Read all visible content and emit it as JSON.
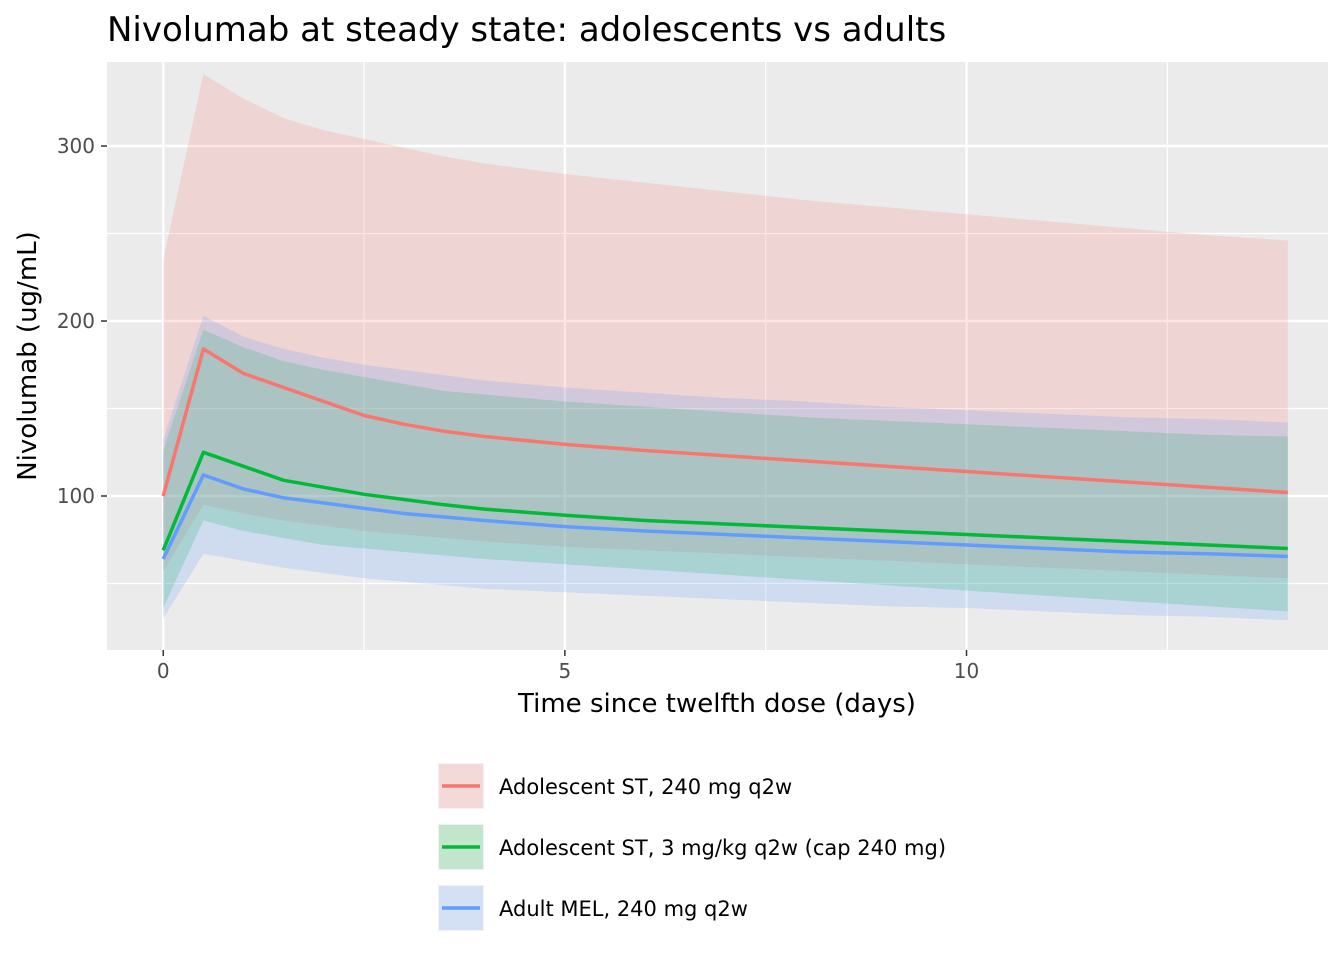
{
  "chart_data": {
    "type": "area",
    "title": "Nivolumab at steady state: adolescents vs adults",
    "xlabel": "Time since twelfth dose (days)",
    "ylabel": "Nivolumab (ug/mL)",
    "xlim": [
      -0.7,
      14.5
    ],
    "ylim": [
      12,
      348
    ],
    "x_ticks": [
      0,
      5,
      10
    ],
    "y_ticks": [
      100,
      200,
      300
    ],
    "grid": true,
    "legend_position": "bottom",
    "panel_background": "#ebebeb",
    "series": [
      {
        "name": "Adolescent ST, 240 mg q2w",
        "color": "#f8766d",
        "x": [
          0,
          0.5,
          1,
          1.5,
          2,
          2.5,
          3,
          3.5,
          4,
          5,
          6,
          7,
          8,
          9,
          10,
          11,
          12,
          13,
          14
        ],
        "y": [
          100,
          184,
          170,
          162,
          154,
          146,
          141,
          137,
          134,
          129.5,
          126,
          123,
          120,
          117,
          114,
          111,
          108,
          105,
          102
        ],
        "lower": [
          57,
          95,
          90,
          86,
          83,
          80,
          78,
          76,
          74,
          71,
          69,
          67,
          65,
          63,
          61,
          59,
          57,
          55,
          53
        ],
        "upper": [
          235,
          341,
          327,
          316,
          309,
          304,
          299,
          294,
          290,
          284,
          279,
          274,
          269,
          265,
          261,
          257,
          253,
          249,
          246
        ]
      },
      {
        "name": "Adolescent ST, 3 mg/kg q2w (cap 240 mg)",
        "color": "#00ba38",
        "x": [
          0,
          0.5,
          1,
          1.5,
          2,
          2.5,
          3,
          3.5,
          4,
          5,
          6,
          7,
          8,
          9,
          10,
          11,
          12,
          13,
          14
        ],
        "y": [
          69,
          125,
          117,
          109,
          105,
          101,
          98,
          95,
          92.5,
          89,
          86,
          84,
          82,
          80,
          78,
          76,
          74,
          72,
          70
        ],
        "lower": [
          36,
          86,
          80,
          76,
          72,
          70,
          68,
          66,
          64,
          61,
          58,
          55,
          52,
          49,
          46,
          43,
          40,
          37,
          34
        ],
        "upper": [
          126,
          195,
          185,
          177,
          172,
          168,
          164,
          160,
          158,
          154,
          151,
          148,
          145,
          143,
          141,
          139,
          137,
          135,
          134
        ]
      },
      {
        "name": "Adult MEL, 240 mg q2w",
        "color": "#619cff",
        "x": [
          0,
          0.5,
          1,
          1.5,
          2,
          2.5,
          3,
          3.5,
          4,
          5,
          6,
          7,
          8,
          9,
          10,
          11,
          12,
          13,
          14
        ],
        "y": [
          64,
          112,
          104,
          99,
          96,
          93,
          90,
          88,
          86,
          82.5,
          80,
          78,
          76,
          74,
          72,
          70,
          68,
          67,
          65.5
        ],
        "lower": [
          30,
          67,
          63,
          59,
          56,
          53,
          51,
          49,
          47,
          45,
          43,
          41,
          39,
          37,
          36,
          34,
          32,
          31,
          29
        ],
        "upper": [
          132,
          203,
          191,
          184,
          179,
          175,
          172,
          169,
          166,
          162,
          159,
          156,
          154,
          151,
          149,
          147,
          145,
          144,
          142
        ]
      }
    ]
  }
}
